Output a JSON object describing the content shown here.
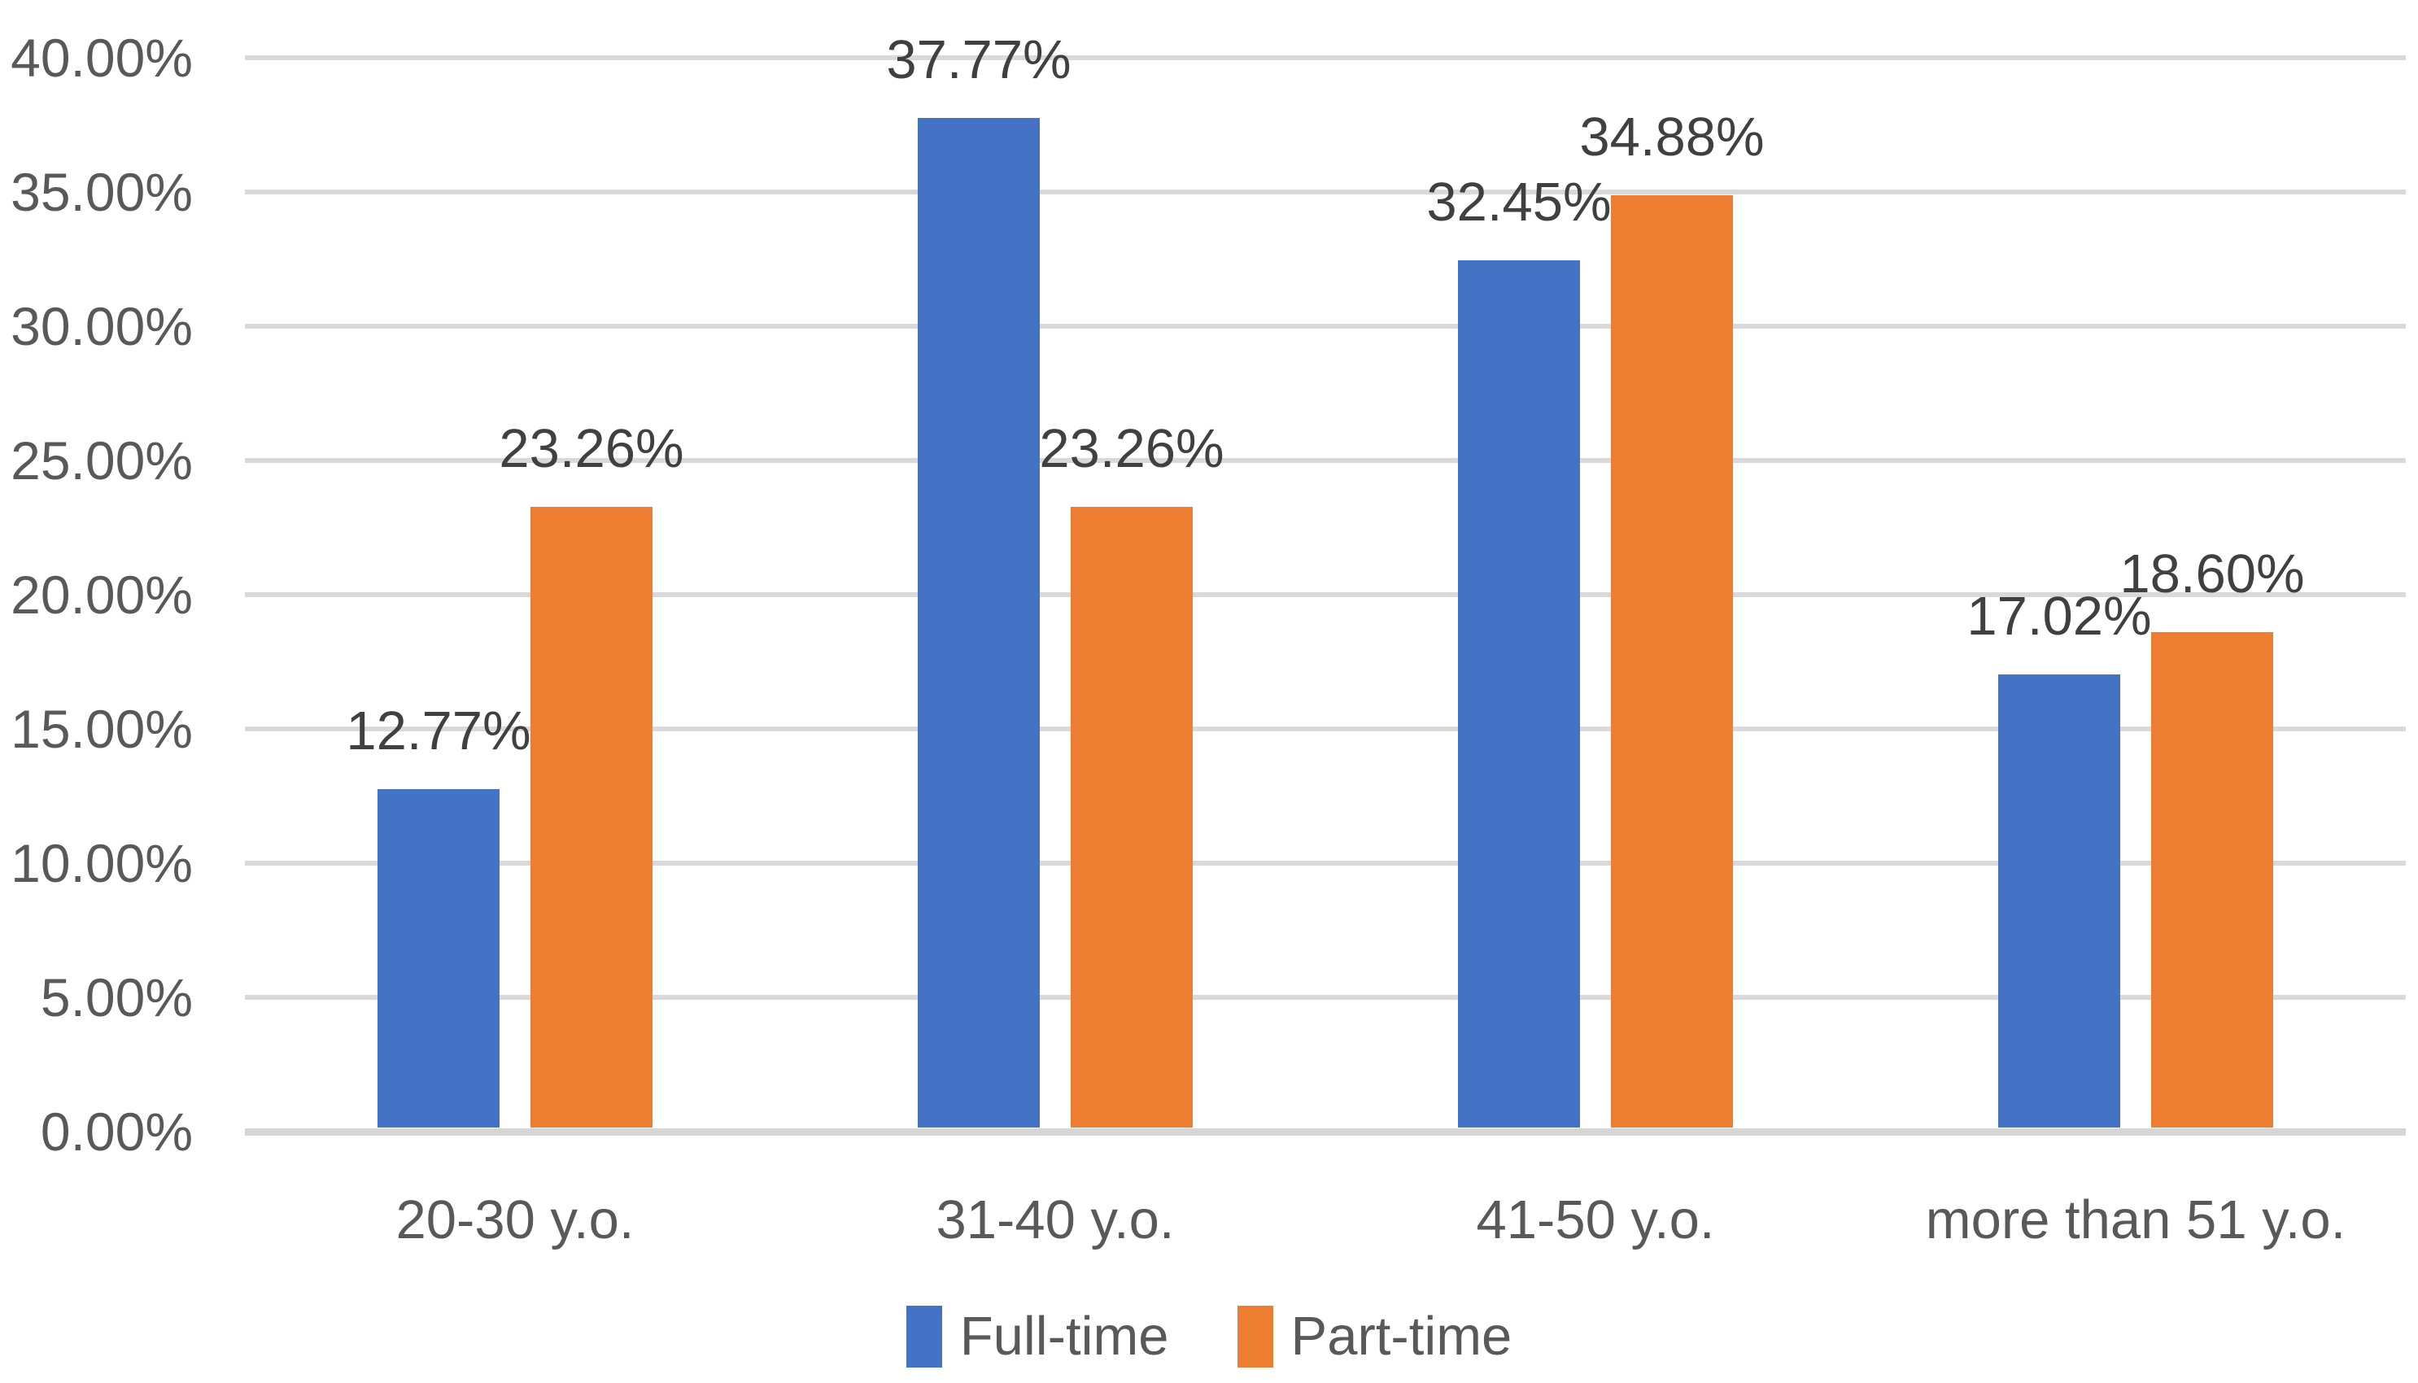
{
  "chart_data": {
    "type": "bar",
    "title": "",
    "xlabel": "",
    "ylabel": "",
    "categories": [
      "20-30 y.o.",
      "31-40 y.o.",
      "41-50 y.o.",
      "more than 51 y.o."
    ],
    "series": [
      {
        "name": "Full-time",
        "color": "#4472C4",
        "values": [
          12.77,
          37.77,
          32.45,
          17.02
        ],
        "data_labels": [
          "12.77%",
          "37.77%",
          "32.45%",
          "17.02%"
        ]
      },
      {
        "name": "Part-time",
        "color": "#ED7D31",
        "values": [
          23.26,
          23.26,
          34.88,
          18.6
        ],
        "data_labels": [
          "23.26%",
          "23.26%",
          "34.88%",
          "18.60%"
        ]
      }
    ],
    "y_axis": {
      "min": 0,
      "max": 40,
      "step": 5,
      "tick_labels": [
        "40.00%",
        "35.00%",
        "30.00%",
        "25.00%",
        "20.00%",
        "15.00%",
        "10.00%",
        "5.00%",
        "0.00%"
      ]
    },
    "grid": true,
    "legend_position": "bottom",
    "colors": {
      "gridline": "#d9d9d9",
      "axis_line": "#d6d6d6",
      "tick_text": "#595959",
      "data_label_text": "#404040"
    }
  }
}
